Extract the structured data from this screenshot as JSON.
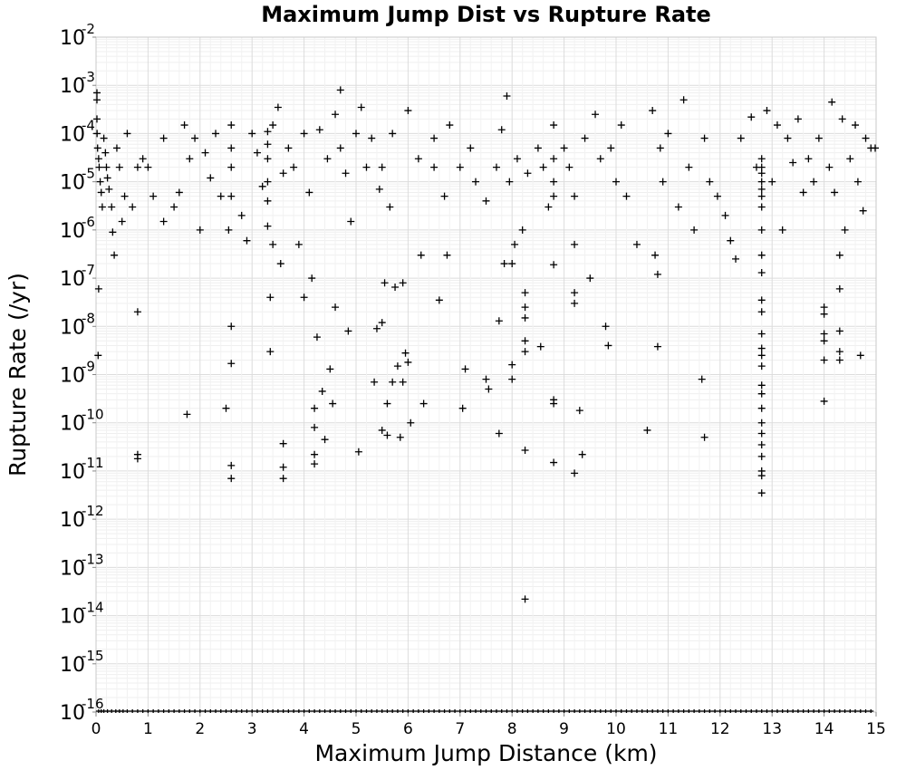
{
  "chart_data": {
    "type": "scatter",
    "title": "Maximum Jump Dist vs Rupture Rate",
    "xlabel": "Maximum Jump Distance (km)",
    "ylabel": "Rupture Rate (/yr)",
    "xlim": [
      0,
      15
    ],
    "ylim": [
      1e-16,
      0.01
    ],
    "y_scale": "log",
    "grid": true,
    "marker": "plus",
    "marker_color": "#000000",
    "x_ticks": [
      "0",
      "1",
      "2",
      "3",
      "4",
      "5",
      "6",
      "7",
      "8",
      "9",
      "10",
      "11",
      "12",
      "13",
      "14",
      "15"
    ],
    "y_ticks": [
      {
        "base": "10",
        "exp": "-2"
      },
      {
        "base": "10",
        "exp": "-3"
      },
      {
        "base": "10",
        "exp": "-4"
      },
      {
        "base": "10",
        "exp": "-5"
      },
      {
        "base": "10",
        "exp": "-6"
      },
      {
        "base": "10",
        "exp": "-7"
      },
      {
        "base": "10",
        "exp": "-8"
      },
      {
        "base": "10",
        "exp": "-9"
      },
      {
        "base": "10",
        "exp": "-10"
      },
      {
        "base": "10",
        "exp": "-11"
      },
      {
        "base": "10",
        "exp": "-12"
      },
      {
        "base": "10",
        "exp": "-13"
      },
      {
        "base": "10",
        "exp": "-14"
      },
      {
        "base": "10",
        "exp": "-15"
      },
      {
        "base": "10",
        "exp": "-16"
      }
    ],
    "points": [
      [
        0.0,
        0.0005
      ],
      [
        0.0,
        0.0002
      ],
      [
        0.02,
        0.0001
      ],
      [
        0.03,
        5e-05
      ],
      [
        0.05,
        3e-05
      ],
      [
        0.06,
        2e-05
      ],
      [
        0.08,
        1e-05
      ],
      [
        0.1,
        6e-06
      ],
      [
        0.12,
        3e-06
      ],
      [
        0.05,
        6e-08
      ],
      [
        0.04,
        2.5e-09
      ],
      [
        0.0,
        0.0007
      ],
      [
        0.15,
        8e-05
      ],
      [
        0.18,
        4e-05
      ],
      [
        0.2,
        2e-05
      ],
      [
        0.22,
        1.2e-05
      ],
      [
        0.25,
        7e-06
      ],
      [
        0.3,
        3e-06
      ],
      [
        0.32,
        9e-07
      ],
      [
        0.35,
        3e-07
      ],
      [
        0.4,
        5e-05
      ],
      [
        0.45,
        2e-05
      ],
      [
        0.5,
        1.5e-06
      ],
      [
        0.55,
        5e-06
      ],
      [
        0.6,
        0.0001
      ],
      [
        0.7,
        3e-06
      ],
      [
        0.8,
        2e-05
      ],
      [
        0.8,
        2e-08
      ],
      [
        0.8,
        2.2e-11
      ],
      [
        0.8,
        1.8e-11
      ],
      [
        0.9,
        3e-05
      ],
      [
        1.0,
        2e-05
      ],
      [
        1.1,
        5e-06
      ],
      [
        1.3,
        8e-05
      ],
      [
        1.3,
        1.5e-06
      ],
      [
        1.5,
        3e-06
      ],
      [
        1.6,
        6e-06
      ],
      [
        1.7,
        0.00015
      ],
      [
        1.75,
        1.5e-10
      ],
      [
        1.8,
        3e-05
      ],
      [
        1.9,
        8e-05
      ],
      [
        2.0,
        1e-06
      ],
      [
        2.1,
        4e-05
      ],
      [
        2.2,
        1.2e-05
      ],
      [
        2.3,
        0.0001
      ],
      [
        2.4,
        5e-06
      ],
      [
        2.5,
        2e-10
      ],
      [
        2.55,
        1e-06
      ],
      [
        2.6,
        0.00015
      ],
      [
        2.6,
        5e-05
      ],
      [
        2.6,
        2e-05
      ],
      [
        2.6,
        5e-06
      ],
      [
        2.6,
        1e-08
      ],
      [
        2.6,
        1.7e-09
      ],
      [
        2.6,
        1.3e-11
      ],
      [
        2.6,
        7e-12
      ],
      [
        2.8,
        2e-06
      ],
      [
        2.9,
        6e-07
      ],
      [
        3.0,
        0.0001
      ],
      [
        3.1,
        4e-05
      ],
      [
        3.2,
        8e-06
      ],
      [
        3.3,
        0.00011
      ],
      [
        3.3,
        6e-05
      ],
      [
        3.3,
        3e-05
      ],
      [
        3.3,
        1e-05
      ],
      [
        3.3,
        4e-06
      ],
      [
        3.3,
        1.2e-06
      ],
      [
        3.35,
        4e-08
      ],
      [
        3.35,
        3e-09
      ],
      [
        3.4,
        0.00015
      ],
      [
        3.4,
        5e-07
      ],
      [
        3.5,
        0.00035
      ],
      [
        3.55,
        2e-07
      ],
      [
        3.6,
        1.5e-05
      ],
      [
        3.6,
        3.7e-11
      ],
      [
        3.6,
        1.2e-11
      ],
      [
        3.6,
        7e-12
      ],
      [
        3.7,
        5e-05
      ],
      [
        3.8,
        2e-05
      ],
      [
        3.9,
        5e-07
      ],
      [
        4.0,
        4e-08
      ],
      [
        4.0,
        0.0001
      ],
      [
        4.1,
        6e-06
      ],
      [
        4.15,
        1e-07
      ],
      [
        4.2,
        2e-10
      ],
      [
        4.2,
        8e-11
      ],
      [
        4.2,
        2.2e-11
      ],
      [
        4.2,
        1.4e-11
      ],
      [
        4.25,
        6e-09
      ],
      [
        4.3,
        0.00012
      ],
      [
        4.35,
        4.5e-10
      ],
      [
        4.4,
        4.5e-11
      ],
      [
        4.45,
        3e-05
      ],
      [
        4.5,
        1.3e-09
      ],
      [
        4.55,
        2.5e-10
      ],
      [
        4.6,
        2.5e-08
      ],
      [
        4.6,
        0.00025
      ],
      [
        4.7,
        0.0008
      ],
      [
        4.7,
        5e-05
      ],
      [
        4.8,
        1.5e-05
      ],
      [
        4.85,
        8e-09
      ],
      [
        4.9,
        1.5e-06
      ],
      [
        5.0,
        0.0001
      ],
      [
        5.05,
        2.5e-11
      ],
      [
        5.1,
        0.00035
      ],
      [
        5.2,
        2e-05
      ],
      [
        5.3,
        8e-05
      ],
      [
        5.35,
        7e-10
      ],
      [
        5.4,
        9e-09
      ],
      [
        5.45,
        7e-06
      ],
      [
        5.5,
        2e-05
      ],
      [
        5.5,
        1.2e-08
      ],
      [
        5.5,
        7e-11
      ],
      [
        5.55,
        8e-08
      ],
      [
        5.6,
        2.5e-10
      ],
      [
        5.6,
        5.5e-11
      ],
      [
        5.65,
        3e-06
      ],
      [
        5.7,
        0.0001
      ],
      [
        5.7,
        7e-10
      ],
      [
        5.75,
        6.5e-08
      ],
      [
        5.8,
        1.5e-09
      ],
      [
        5.85,
        5e-11
      ],
      [
        5.9,
        8e-08
      ],
      [
        5.9,
        7e-10
      ],
      [
        5.95,
        2.8e-09
      ],
      [
        6.0,
        0.0003
      ],
      [
        6.0,
        1.8e-09
      ],
      [
        6.05,
        1e-10
      ],
      [
        6.2,
        3e-05
      ],
      [
        6.25,
        3e-07
      ],
      [
        6.3,
        2.5e-10
      ],
      [
        6.5,
        8e-05
      ],
      [
        6.5,
        2e-05
      ],
      [
        6.6,
        3.5e-08
      ],
      [
        6.7,
        5e-06
      ],
      [
        6.75,
        3e-07
      ],
      [
        6.8,
        0.00015
      ],
      [
        7.0,
        2e-05
      ],
      [
        7.05,
        2e-10
      ],
      [
        7.1,
        1.3e-09
      ],
      [
        7.2,
        5e-05
      ],
      [
        7.3,
        1e-05
      ],
      [
        7.5,
        4e-06
      ],
      [
        7.5,
        8e-10
      ],
      [
        7.55,
        5e-10
      ],
      [
        7.7,
        2e-05
      ],
      [
        7.75,
        1.3e-08
      ],
      [
        7.75,
        6e-11
      ],
      [
        7.8,
        0.00012
      ],
      [
        7.85,
        2e-07
      ],
      [
        7.9,
        0.0006
      ],
      [
        7.95,
        1e-05
      ],
      [
        8.0,
        8e-10
      ],
      [
        8.0,
        1.6e-09
      ],
      [
        8.0,
        2e-07
      ],
      [
        8.05,
        5e-07
      ],
      [
        8.1,
        3e-05
      ],
      [
        8.2,
        1e-06
      ],
      [
        8.25,
        5e-08
      ],
      [
        8.25,
        2.5e-08
      ],
      [
        8.25,
        1.5e-08
      ],
      [
        8.25,
        5e-09
      ],
      [
        8.25,
        3e-09
      ],
      [
        8.25,
        2.7e-11
      ],
      [
        8.25,
        2.2e-14
      ],
      [
        8.3,
        1.5e-05
      ],
      [
        8.5,
        5e-05
      ],
      [
        8.55,
        3.8e-09
      ],
      [
        8.6,
        2e-05
      ],
      [
        8.7,
        3e-06
      ],
      [
        8.8,
        0.00015
      ],
      [
        8.8,
        3e-05
      ],
      [
        8.8,
        1e-05
      ],
      [
        8.8,
        5e-06
      ],
      [
        8.8,
        3e-10
      ],
      [
        8.8,
        2.5e-10
      ],
      [
        8.8,
        1.9e-07
      ],
      [
        8.8,
        1.5e-11
      ],
      [
        9.0,
        5e-05
      ],
      [
        9.1,
        2e-05
      ],
      [
        9.2,
        5e-06
      ],
      [
        9.2,
        5e-08
      ],
      [
        9.2,
        3e-08
      ],
      [
        9.2,
        9e-12
      ],
      [
        9.2,
        5e-07
      ],
      [
        9.3,
        1.8e-10
      ],
      [
        9.35,
        2.2e-11
      ],
      [
        9.4,
        8e-05
      ],
      [
        9.5,
        1e-07
      ],
      [
        9.6,
        0.00025
      ],
      [
        9.7,
        3e-05
      ],
      [
        9.8,
        1e-08
      ],
      [
        9.85,
        4e-09
      ],
      [
        9.9,
        5e-05
      ],
      [
        10.0,
        1e-05
      ],
      [
        10.1,
        0.00015
      ],
      [
        10.2,
        5e-06
      ],
      [
        10.4,
        5e-07
      ],
      [
        10.6,
        7e-11
      ],
      [
        10.7,
        0.0003
      ],
      [
        10.75,
        3e-07
      ],
      [
        10.8,
        3.8e-09
      ],
      [
        10.8,
        1.2e-07
      ],
      [
        10.85,
        5e-05
      ],
      [
        10.9,
        1e-05
      ],
      [
        11.0,
        0.0001
      ],
      [
        11.2,
        3e-06
      ],
      [
        11.3,
        0.0005
      ],
      [
        11.4,
        2e-05
      ],
      [
        11.5,
        1e-06
      ],
      [
        11.65,
        8e-10
      ],
      [
        11.7,
        5e-11
      ],
      [
        11.7,
        8e-05
      ],
      [
        11.8,
        1e-05
      ],
      [
        11.95,
        5e-06
      ],
      [
        12.1,
        2e-06
      ],
      [
        12.2,
        6e-07
      ],
      [
        12.3,
        2.5e-07
      ],
      [
        12.4,
        8e-05
      ],
      [
        12.6,
        0.00022
      ],
      [
        12.7,
        2e-05
      ],
      [
        12.8,
        3e-05
      ],
      [
        12.8,
        2e-05
      ],
      [
        12.8,
        1.5e-05
      ],
      [
        12.8,
        1e-05
      ],
      [
        12.8,
        7e-06
      ],
      [
        12.8,
        5e-06
      ],
      [
        12.8,
        3e-06
      ],
      [
        12.8,
        1e-06
      ],
      [
        12.8,
        3e-07
      ],
      [
        12.8,
        1.3e-07
      ],
      [
        12.8,
        3.5e-08
      ],
      [
        12.8,
        2e-08
      ],
      [
        12.8,
        7e-09
      ],
      [
        12.8,
        3.5e-09
      ],
      [
        12.8,
        2.5e-09
      ],
      [
        12.8,
        1.5e-09
      ],
      [
        12.8,
        6e-10
      ],
      [
        12.8,
        4e-10
      ],
      [
        12.8,
        2e-10
      ],
      [
        12.8,
        1e-10
      ],
      [
        12.8,
        6e-11
      ],
      [
        12.8,
        3.5e-11
      ],
      [
        12.8,
        2e-11
      ],
      [
        12.8,
        1e-11
      ],
      [
        12.8,
        8e-12
      ],
      [
        12.8,
        3.5e-12
      ],
      [
        12.9,
        0.0003
      ],
      [
        13.0,
        1e-05
      ],
      [
        13.1,
        0.00015
      ],
      [
        13.2,
        1e-06
      ],
      [
        13.3,
        8e-05
      ],
      [
        13.4,
        2.5e-05
      ],
      [
        13.5,
        0.0002
      ],
      [
        13.6,
        6e-06
      ],
      [
        13.7,
        3e-05
      ],
      [
        13.8,
        1e-05
      ],
      [
        13.9,
        8e-05
      ],
      [
        14.0,
        2.5e-08
      ],
      [
        14.0,
        1.8e-08
      ],
      [
        14.0,
        7e-09
      ],
      [
        14.0,
        5e-09
      ],
      [
        14.0,
        2e-09
      ],
      [
        14.0,
        2.8e-10
      ],
      [
        14.1,
        2e-05
      ],
      [
        14.15,
        0.00045
      ],
      [
        14.2,
        6e-06
      ],
      [
        14.3,
        8e-09
      ],
      [
        14.3,
        3e-09
      ],
      [
        14.3,
        2e-09
      ],
      [
        14.3,
        3e-07
      ],
      [
        14.3,
        6e-08
      ],
      [
        14.35,
        0.0002
      ],
      [
        14.4,
        1e-06
      ],
      [
        14.5,
        3e-05
      ],
      [
        14.6,
        0.00015
      ],
      [
        14.65,
        1e-05
      ],
      [
        14.7,
        2.5e-09
      ],
      [
        14.75,
        2.5e-06
      ],
      [
        14.8,
        8e-05
      ],
      [
        14.9,
        5e-05
      ],
      [
        15.0,
        5e-05
      ]
    ],
    "floor_points_x": [
      0.05,
      0.1,
      0.15,
      0.22,
      0.3,
      0.38,
      0.45,
      0.52,
      0.6,
      0.7,
      0.8,
      0.9,
      1.0,
      1.1,
      1.2,
      1.3,
      1.4,
      1.5,
      1.6,
      1.7,
      1.8,
      1.9,
      2.0,
      2.1,
      2.2,
      2.3,
      2.4,
      2.5,
      2.6,
      2.7,
      2.8,
      2.9,
      3.0,
      3.1,
      3.2,
      3.3,
      3.4,
      3.5,
      3.6,
      3.7,
      3.8,
      3.9,
      4.0,
      4.1,
      4.2,
      4.3,
      4.4,
      4.5,
      4.6,
      4.7,
      4.8,
      4.9,
      5.0,
      5.1,
      5.2,
      5.3,
      5.4,
      5.5,
      5.6,
      5.7,
      5.8,
      5.9,
      6.0,
      6.1,
      6.2,
      6.3,
      6.4,
      6.5,
      6.6,
      6.7,
      6.8,
      6.9,
      7.0,
      7.1,
      7.2,
      7.3,
      7.4,
      7.5,
      7.6,
      7.7,
      7.8,
      7.9,
      8.0,
      8.1,
      8.2,
      8.3,
      8.4,
      8.5,
      8.6,
      8.7,
      8.8,
      8.9,
      9.0,
      9.1,
      9.2,
      9.3,
      9.4,
      9.5,
      9.6,
      9.7,
      9.8,
      9.9,
      10.0,
      10.1,
      10.2,
      10.3,
      10.4,
      10.5,
      10.6,
      10.7,
      10.8,
      10.9,
      11.0,
      11.1,
      11.2,
      11.3,
      11.4,
      11.5,
      11.6,
      11.7,
      11.8,
      11.9,
      12.0,
      12.1,
      12.2,
      12.3,
      12.4,
      12.5,
      12.6,
      12.7,
      12.8,
      12.9,
      13.0,
      13.1,
      13.2,
      13.3,
      13.4,
      13.5,
      13.6,
      13.7,
      13.8,
      13.9,
      14.0,
      14.1,
      14.2,
      14.3,
      14.4,
      14.5,
      14.6,
      14.7,
      14.8,
      14.9
    ]
  }
}
